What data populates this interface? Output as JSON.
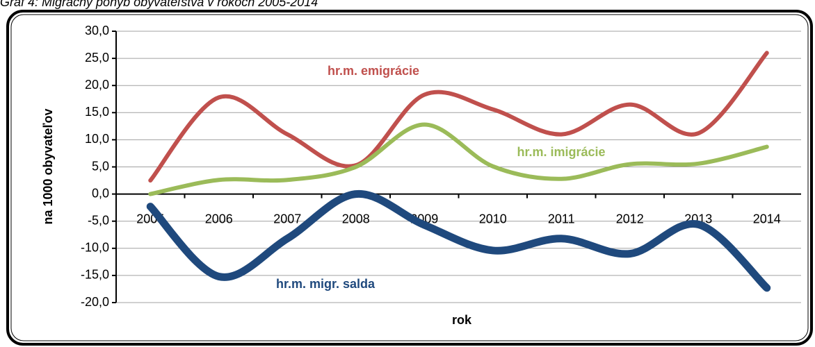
{
  "chart_data": {
    "type": "line",
    "title": "Graf 4: Migračný pohyb obyvateľstva v rokoch 2005-2014",
    "x_label": "rok",
    "y_label": "na 1000 obyvateľov",
    "categories": [
      "2005",
      "2006",
      "2007",
      "2008",
      "2009",
      "2010",
      "2011",
      "2012",
      "2013",
      "2014"
    ],
    "series": [
      {
        "name": "hr.m. emigrácie",
        "color": "#c0504d",
        "values": [
          2.5,
          17.8,
          11.0,
          5.3,
          18.3,
          15.6,
          11.0,
          16.5,
          11.2,
          26.0
        ]
      },
      {
        "name": "hr.m. imigrácie",
        "color": "#9bbb59",
        "values": [
          0.0,
          2.6,
          2.6,
          5.0,
          12.8,
          5.1,
          2.8,
          5.5,
          5.6,
          8.7
        ]
      },
      {
        "name": "hr.m. migr. salda",
        "color": "#1f497d",
        "values": [
          -2.3,
          -15.2,
          -8.2,
          0.0,
          -5.7,
          -10.4,
          -8.2,
          -11.0,
          -5.6,
          -17.3
        ]
      }
    ],
    "ylim": [
      -20,
      30
    ],
    "yticks": [
      {
        "value": -20,
        "label": "-20,0"
      },
      {
        "value": -15,
        "label": "-15,0"
      },
      {
        "value": -10,
        "label": "-10,0"
      },
      {
        "value": -5,
        "label": "-5,0"
      },
      {
        "value": 0,
        "label": "0,0"
      },
      {
        "value": 5,
        "label": "5,0"
      },
      {
        "value": 10,
        "label": "10,0"
      },
      {
        "value": 15,
        "label": "15,0"
      },
      {
        "value": 20,
        "label": "20,0"
      },
      {
        "value": 25,
        "label": "25,0"
      },
      {
        "value": 30,
        "label": "30,0"
      }
    ],
    "grid": true
  }
}
